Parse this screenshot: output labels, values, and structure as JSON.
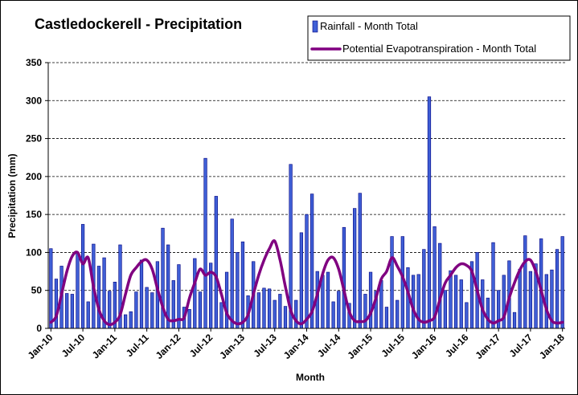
{
  "chart_data": {
    "type": "bar",
    "title": "Castledockerell - Precipitation",
    "xlabel": "Month",
    "ylabel": "Precipitation (mm)",
    "ylim": [
      0,
      350
    ],
    "yticks": [
      "0",
      "50",
      "100",
      "150",
      "200",
      "250",
      "300",
      "350"
    ],
    "grid": "horizontal dashed",
    "legend_position": "top-right",
    "xtick_labels": [
      "Jan-10",
      "Jul-10",
      "Jan-11",
      "Jul-11",
      "Jan-12",
      "Jul-12",
      "Jan-13",
      "Jul-13",
      "Jan-14",
      "Jul-14",
      "Jan-15",
      "Jul-15",
      "Jan-16",
      "Jul-16",
      "Jan-17",
      "Jul-17",
      "Jan-18"
    ],
    "colors": {
      "rainfall": "#3f5fd6",
      "rainfall_edge": "#000080",
      "pet": "#800080"
    },
    "series": [
      {
        "name": "Rainfall - Month Total",
        "type": "bar",
        "values": [
          105,
          65,
          82,
          46,
          45,
          100,
          137,
          35,
          111,
          82,
          93,
          49,
          61,
          110,
          18,
          22,
          48,
          90,
          54,
          47,
          88,
          132,
          110,
          63,
          84,
          28,
          25,
          92,
          48,
          224,
          86,
          174,
          34,
          74,
          144,
          100,
          114,
          43,
          88,
          47,
          53,
          52,
          37,
          45,
          29,
          216,
          37,
          126,
          150,
          177,
          75,
          70,
          74,
          35,
          49,
          133,
          33,
          158,
          178,
          45,
          74,
          49,
          63,
          28,
          121,
          37,
          121,
          80,
          70,
          71,
          104,
          305,
          134,
          112,
          50,
          76,
          70,
          64,
          34,
          88,
          100,
          64,
          40,
          113,
          50,
          70,
          89,
          21,
          78,
          122,
          75,
          85,
          118,
          71,
          77,
          104,
          121
        ]
      },
      {
        "name": "Potential Evapotranspiration - Month Total",
        "type": "line",
        "values": [
          8,
          16,
          45,
          75,
          95,
          100,
          85,
          93,
          55,
          25,
          10,
          5,
          8,
          18,
          45,
          70,
          80,
          88,
          90,
          78,
          52,
          28,
          12,
          10,
          12,
          14,
          40,
          60,
          78,
          70,
          74,
          68,
          45,
          20,
          10,
          6,
          8,
          18,
          45,
          70,
          90,
          105,
          115,
          90,
          55,
          24,
          10,
          6,
          12,
          22,
          45,
          72,
          90,
          93,
          78,
          50,
          22,
          10,
          9,
          10,
          20,
          40,
          65,
          75,
          93,
          82,
          68,
          48,
          25,
          12,
          8,
          10,
          15,
          38,
          60,
          70,
          80,
          85,
          83,
          75,
          50,
          25,
          12,
          7,
          10,
          15,
          40,
          60,
          77,
          88,
          90,
          75,
          50,
          25,
          10,
          7,
          8
        ]
      }
    ]
  }
}
